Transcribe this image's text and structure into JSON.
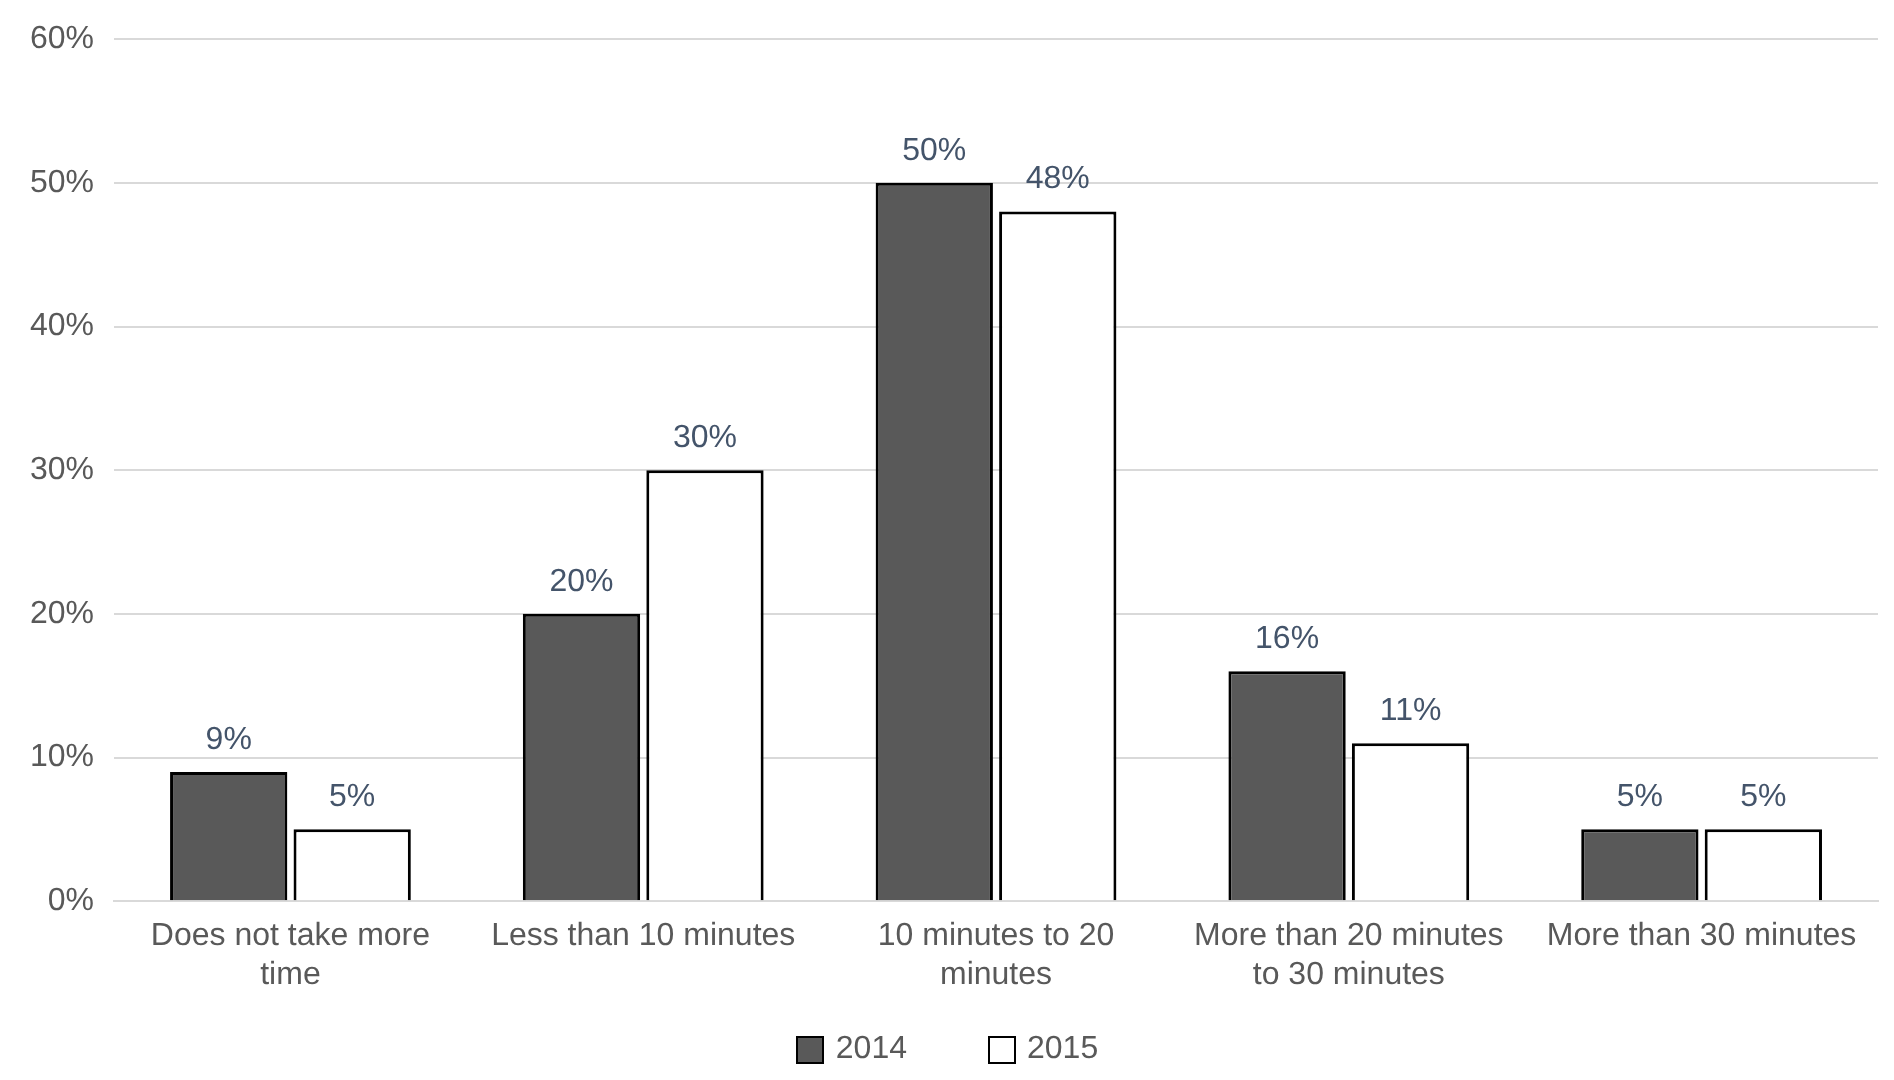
{
  "chart_data": {
    "type": "bar",
    "categories": [
      "Does not take more time",
      "Less than 10 minutes",
      "10 minutes to 20 minutes",
      "More than 20 minutes to 30 minutes",
      "More than 30 minutes"
    ],
    "series": [
      {
        "name": "2014",
        "color": "#595959",
        "values": [
          9,
          20,
          50,
          16,
          5
        ],
        "value_labels": [
          "9%",
          "20%",
          "50%",
          "16%",
          "5%"
        ]
      },
      {
        "name": "2015",
        "color": "#ffffff",
        "values": [
          5,
          30,
          48,
          11,
          5
        ],
        "value_labels": [
          "5%",
          "30%",
          "48%",
          "11%",
          "5%"
        ]
      }
    ],
    "ylim": [
      0,
      60
    ],
    "yticks": [
      {
        "value": 0,
        "label": "0%"
      },
      {
        "value": 10,
        "label": "10%"
      },
      {
        "value": 20,
        "label": "20%"
      },
      {
        "value": 30,
        "label": "30%"
      },
      {
        "value": 40,
        "label": "40%"
      },
      {
        "value": 50,
        "label": "50%"
      },
      {
        "value": 60,
        "label": "60%"
      }
    ],
    "grid": "y",
    "legend": "bottom"
  }
}
